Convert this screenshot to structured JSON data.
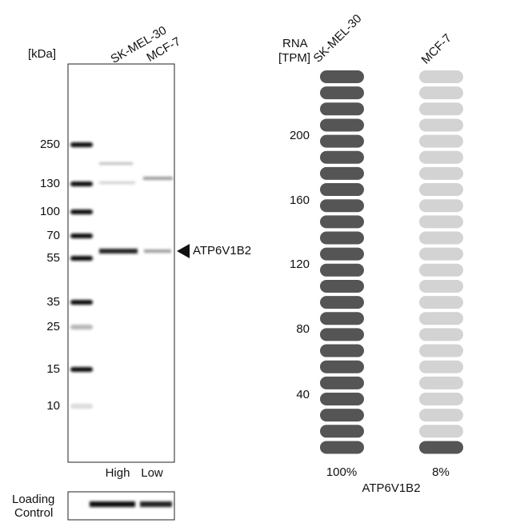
{
  "western_blot": {
    "unit_label": "[kDa]",
    "lanes": [
      "SK-MEL-30",
      "MCF-7"
    ],
    "markers": [
      "250",
      "130",
      "100",
      "70",
      "55",
      "35",
      "25",
      "15",
      "10"
    ],
    "target": "ATP6V1B2",
    "expression": [
      "High",
      "Low"
    ],
    "loading_control": [
      "Loading",
      "Control"
    ]
  },
  "rna": {
    "axis_label": [
      "RNA",
      "[TPM]"
    ],
    "cell_lines": [
      "SK-MEL-30",
      "MCF-7"
    ],
    "ticks": [
      "200",
      "160",
      "120",
      "80",
      "40"
    ],
    "percentages": [
      "100%",
      "8%"
    ],
    "gene": "ATP6V1B2"
  }
}
